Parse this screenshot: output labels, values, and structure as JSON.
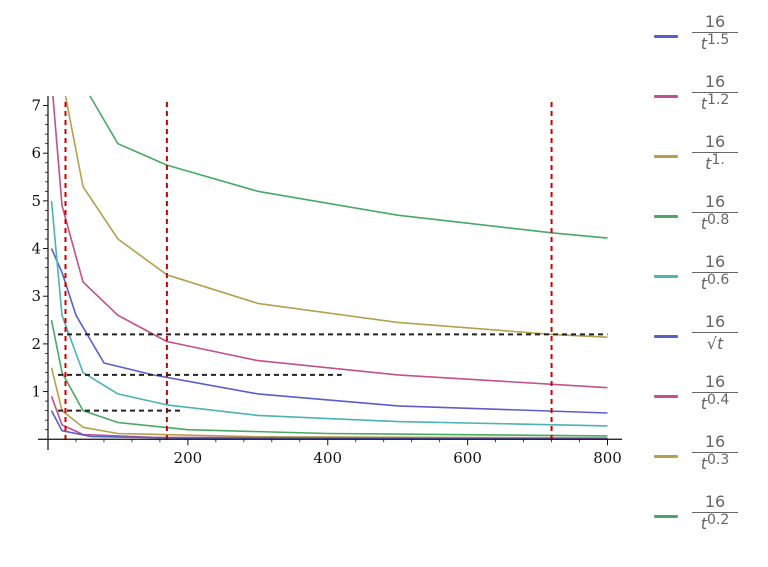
{
  "chart_data": {
    "type": "line",
    "title": "",
    "xlabel": "",
    "ylabel": "",
    "xlim": [
      0,
      815
    ],
    "ylim": [
      -0.1,
      7.2
    ],
    "x_ticks": [
      200,
      400,
      600,
      800
    ],
    "y_ticks": [
      1,
      2,
      3,
      4,
      5,
      6,
      7
    ],
    "grid": false,
    "legend_position": "right",
    "series": [
      {
        "name": "16/t^1.5",
        "numerator": "16",
        "base": "t",
        "exponent": "1.5",
        "color": "#5b5ec8",
        "values_desc": "16 / t^1.5"
      },
      {
        "name": "16/t^1.2",
        "numerator": "16",
        "base": "t",
        "exponent": "1.2",
        "color": "#c0508e",
        "values_desc": "16 / t^1.2"
      },
      {
        "name": "16/t^1.",
        "numerator": "16",
        "base": "t",
        "exponent": "1.",
        "color": "#b5a04d",
        "values_desc": "16 / t^1"
      },
      {
        "name": "16/t^0.8",
        "numerator": "16",
        "base": "t",
        "exponent": "0.8",
        "color": "#4aa866",
        "values_desc": "16 / t^0.8"
      },
      {
        "name": "16/t^0.6",
        "numerator": "16",
        "base": "t",
        "exponent": "0.6",
        "color": "#4ab3b5",
        "values_desc": "16 / t^0.6"
      },
      {
        "name": "16/√t",
        "numerator": "16",
        "base": "√t",
        "exponent": "",
        "color": "#5b5ec8",
        "values_desc": "16 / t^0.5"
      },
      {
        "name": "16/t^0.4",
        "numerator": "16",
        "base": "t",
        "exponent": "0.4",
        "color": "#c0508e",
        "values_desc": "16 / t^0.4"
      },
      {
        "name": "16/t^0.3",
        "numerator": "16",
        "base": "t",
        "exponent": "0.3",
        "color": "#b5a04d",
        "values_desc": "16 / t^0.3"
      },
      {
        "name": "16/t^0.2",
        "numerator": "16",
        "base": "t",
        "exponent": "0.2",
        "color": "#4aa866",
        "values_desc": "16 / t^0.2"
      }
    ],
    "curves": [
      {
        "color": "#5b5ec8",
        "points": [
          [
            5,
            4.0
          ],
          [
            20,
            3.5
          ],
          [
            40,
            2.6
          ],
          [
            80,
            1.6
          ],
          [
            150,
            1.35
          ],
          [
            300,
            0.95
          ],
          [
            500,
            0.7
          ],
          [
            800,
            0.55
          ]
        ]
      },
      {
        "color": "#c0508e",
        "points": [
          [
            7,
            7.2
          ],
          [
            20,
            4.9
          ],
          [
            50,
            3.3
          ],
          [
            100,
            2.6
          ],
          [
            170,
            2.05
          ],
          [
            300,
            1.65
          ],
          [
            500,
            1.35
          ],
          [
            800,
            1.08
          ]
        ]
      },
      {
        "color": "#b5a04d",
        "points": [
          [
            25,
            7.2
          ],
          [
            50,
            5.3
          ],
          [
            100,
            4.2
          ],
          [
            170,
            3.45
          ],
          [
            300,
            2.85
          ],
          [
            500,
            2.45
          ],
          [
            720,
            2.2
          ],
          [
            800,
            2.14
          ]
        ]
      },
      {
        "color": "#4aa866",
        "points": [
          [
            60,
            7.2
          ],
          [
            100,
            6.2
          ],
          [
            170,
            5.75
          ],
          [
            300,
            5.2
          ],
          [
            500,
            4.7
          ],
          [
            720,
            4.33
          ],
          [
            800,
            4.22
          ]
        ]
      },
      {
        "color": "#4ab3b5",
        "points": [
          [
            5,
            5.0
          ],
          [
            20,
            2.6
          ],
          [
            50,
            1.4
          ],
          [
            100,
            0.95
          ],
          [
            170,
            0.72
          ],
          [
            300,
            0.5
          ],
          [
            500,
            0.37
          ],
          [
            800,
            0.28
          ]
        ]
      },
      {
        "color": "#4aa866",
        "points": [
          [
            5,
            2.5
          ],
          [
            20,
            1.4
          ],
          [
            50,
            0.6
          ],
          [
            100,
            0.35
          ],
          [
            200,
            0.2
          ],
          [
            400,
            0.12
          ],
          [
            800,
            0.07
          ]
        ]
      },
      {
        "color": "#b5a04d",
        "points": [
          [
            5,
            1.5
          ],
          [
            20,
            0.6
          ],
          [
            50,
            0.25
          ],
          [
            100,
            0.12
          ],
          [
            300,
            0.05
          ],
          [
            800,
            0.03
          ]
        ]
      },
      {
        "color": "#c0508e",
        "points": [
          [
            5,
            0.9
          ],
          [
            20,
            0.3
          ],
          [
            50,
            0.1
          ],
          [
            150,
            0.04
          ],
          [
            800,
            0.01
          ]
        ]
      },
      {
        "color": "#5b5ec8",
        "points": [
          [
            5,
            0.6
          ],
          [
            20,
            0.18
          ],
          [
            60,
            0.06
          ],
          [
            200,
            0.02
          ],
          [
            800,
            0.005
          ]
        ]
      }
    ],
    "vertical_reference_lines": [
      {
        "x": 25,
        "color": "#cc0000",
        "style": "dashed"
      },
      {
        "x": 170,
        "color": "#cc0000",
        "style": "dashed"
      },
      {
        "x": 720,
        "color": "#cc0000",
        "style": "dashed"
      }
    ],
    "horizontal_reference_lines": [
      {
        "y": 2.2,
        "x_from": 0,
        "x_to": 800,
        "color": "#222222",
        "style": "dashed"
      },
      {
        "y": 1.35,
        "x_from": 0,
        "x_to": 420,
        "color": "#222222",
        "style": "dashed"
      },
      {
        "y": 0.6,
        "x_from": 0,
        "x_to": 190,
        "color": "#222222",
        "style": "dashed"
      }
    ]
  }
}
